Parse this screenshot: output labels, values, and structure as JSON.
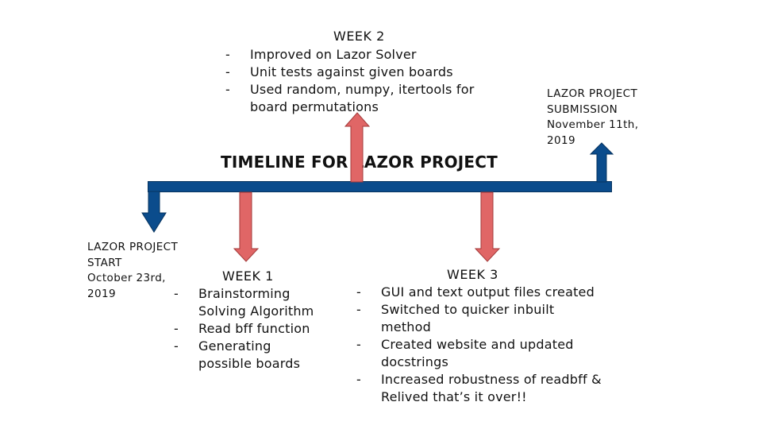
{
  "title": "TIMELINE FOR LAZOR PROJECT",
  "start": {
    "lines": [
      "LAZOR PROJECT",
      "START",
      "October 23rd,",
      "2019"
    ]
  },
  "submission": {
    "lines": [
      "LAZOR PROJECT",
      "SUBMISSION",
      "November 11th,",
      "2019"
    ]
  },
  "week1": {
    "heading": "WEEK 1",
    "items": [
      "Brainstorming Solving Algorithm",
      "Read bff function",
      "Generating possible boards"
    ]
  },
  "week2": {
    "heading": "WEEK 2",
    "items": [
      "Improved on Lazor Solver",
      "Unit tests against given boards",
      "Used random, numpy, itertools for board permutations"
    ]
  },
  "week3": {
    "heading": "WEEK 3",
    "items": [
      "GUI and text output files created",
      "Switched to quicker inbuilt method",
      "Created website and updated docstrings",
      "Increased robustness of readbff & Relived that’s it over!!"
    ]
  },
  "colors": {
    "bar": "#0b4c8c",
    "milestone_arrow": "#0b4c8c",
    "week_arrow": "#e06666",
    "week_arrow_stroke": "#a33a3a"
  }
}
